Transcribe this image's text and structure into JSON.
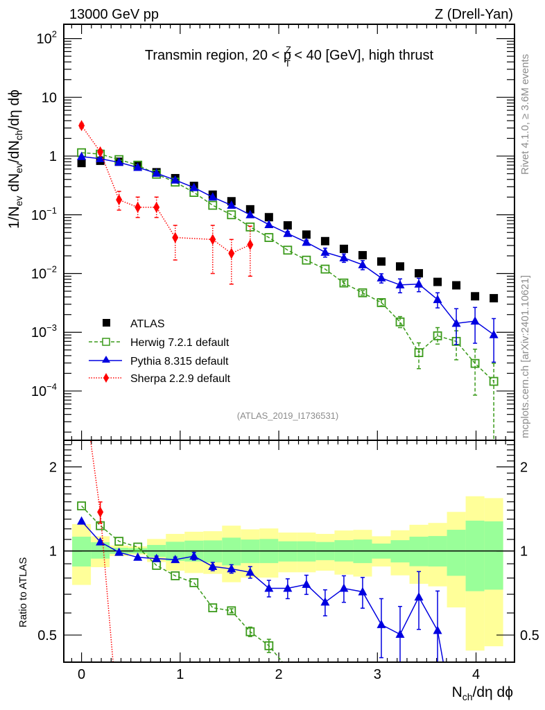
{
  "header": {
    "left": "13000 GeV pp",
    "right": "Z (Drell-Yan)"
  },
  "side_text": {
    "rivet": "Rivet 4.1.0, ≥ 3.6M events",
    "mcplots": "mcplots.cern.ch [arXiv:2401.10621]"
  },
  "analysis_id": "(ATLAS_2019_I1736531)",
  "colors": {
    "atlas": "#000000",
    "herwig": "#3a9a1a",
    "pythia": "#0000e0",
    "sherpa": "#ff0000",
    "band_inner": "#99ff99",
    "band_outer": "#ffff99"
  },
  "chart_data": [
    {
      "type": "scatter",
      "panel": "main",
      "title": "Transmin region, 20 < p_T^Z < 40 [GeV], high thrust",
      "title_parts": {
        "pre": "Transmin region, 20 < p",
        "sup": "Z",
        "sub": "T",
        "post": " < 40 [GeV], high thrust"
      },
      "ylabel": "1/N_ev dN_ev/dN_ch/dη dϕ",
      "ylabel_parts": [
        "1/N",
        "ev",
        " dN",
        "ev",
        "/dN",
        "ch",
        "/dη dϕ"
      ],
      "yscale": "log",
      "ylim": [
        1.45e-05,
        175
      ],
      "xlim": [
        -0.18,
        4.39
      ],
      "yticks": [
        {
          "v": 100,
          "base": "10",
          "exp": "2"
        },
        {
          "v": 10,
          "base": "10",
          "exp": ""
        },
        {
          "v": 1,
          "base": "1",
          "exp": ""
        },
        {
          "v": 0.1,
          "base": "10",
          "exp": "−1"
        },
        {
          "v": 0.01,
          "base": "10",
          "exp": "−2"
        },
        {
          "v": 0.001,
          "base": "10",
          "exp": "−3"
        },
        {
          "v": 0.0001,
          "base": "10",
          "exp": "−4"
        }
      ],
      "x": [
        0,
        0.19,
        0.38,
        0.57,
        0.76,
        0.95,
        1.14,
        1.33,
        1.52,
        1.71,
        1.9,
        2.09,
        2.28,
        2.47,
        2.66,
        2.85,
        3.04,
        3.23,
        3.42,
        3.61,
        3.8,
        3.99,
        4.18
      ],
      "legend": {
        "placement": "lower-left",
        "entries": [
          "ATLAS",
          "Herwig 7.2.1 default",
          "Pythia 8.315 default",
          "Sherpa 2.2.9 default"
        ]
      },
      "series": [
        {
          "name": "ATLAS",
          "key": "atlas",
          "marker": "square-filled",
          "values": [
            0.76,
            0.83,
            0.8,
            0.7,
            0.53,
            0.42,
            0.31,
            0.22,
            0.17,
            0.124,
            0.091,
            0.066,
            0.046,
            0.0356,
            0.0263,
            0.0205,
            0.016,
            0.0132,
            0.0101,
            0.0072,
            0.0063,
            0.0041,
            0.0038
          ]
        },
        {
          "name": "Herwig 7.2.1 default",
          "key": "herwig",
          "marker": "square-open",
          "line": "dashed",
          "values": [
            1.14,
            1.08,
            0.87,
            0.7,
            0.49,
            0.36,
            0.24,
            0.145,
            0.1,
            0.062,
            0.041,
            0.025,
            0.0169,
            0.0119,
            0.0069,
            0.0047,
            0.0032,
            0.0015,
            0.00045,
            0.00087,
            0.0007,
            0.000295,
            0.000146
          ],
          "err_up": [
            0,
            0,
            0,
            0,
            0,
            0,
            0,
            0,
            0,
            0,
            0,
            0,
            0,
            0,
            0.0006,
            0.0004,
            0.0004,
            0.00035,
            0.00021,
            0.00033,
            0.00036,
            0.00022,
            0.00015
          ],
          "err_down": [
            0,
            0,
            0,
            0,
            0,
            0,
            0,
            0,
            0,
            0,
            0,
            0,
            0,
            0,
            0.0006,
            0.0004,
            0.0004,
            0.0003,
            0.00021,
            0.00024,
            0.00036,
            0.00021,
            0.000146
          ]
        },
        {
          "name": "Pythia 8.315 default",
          "key": "pythia",
          "marker": "triangle-filled",
          "line": "solid",
          "values": [
            0.98,
            0.9,
            0.78,
            0.64,
            0.51,
            0.39,
            0.29,
            0.2,
            0.145,
            0.1,
            0.068,
            0.048,
            0.034,
            0.023,
            0.0185,
            0.0141,
            0.0084,
            0.0064,
            0.0066,
            0.0036,
            0.00142,
            0.00155,
            0.00091
          ],
          "err_up": [
            0,
            0,
            0,
            0,
            0,
            0,
            0,
            0,
            0,
            0,
            0,
            0.004,
            0.003,
            0.004,
            0.003,
            0.0025,
            0.0015,
            0.0017,
            0.0017,
            0.0011,
            0.0011,
            0.0011,
            0.0008
          ],
          "err_down": [
            0,
            0,
            0,
            0,
            0,
            0,
            0,
            0,
            0,
            0,
            0,
            0.004,
            0.003,
            0.004,
            0.003,
            0.0025,
            0.0015,
            0.0017,
            0.0017,
            0.001,
            0.0008,
            0.0009,
            0.0006
          ]
        },
        {
          "name": "Sherpa 2.2.9 default",
          "key": "sherpa",
          "marker": "diamond-filled",
          "line": "dotted",
          "x": [
            0,
            0.19,
            0.38,
            0.57,
            0.76,
            0.95,
            1.33,
            1.52,
            1.71
          ],
          "values": [
            3.3,
            1.18,
            0.18,
            0.134,
            0.134,
            0.041,
            0.038,
            0.022,
            0.031
          ],
          "err_up": [
            0.3,
            0.1,
            0.07,
            0.066,
            0.066,
            0.025,
            0.028,
            0.016,
            0.033
          ],
          "err_down": [
            0.3,
            0.1,
            0.06,
            0.044,
            0.044,
            0.024,
            0.028,
            0.0154,
            0.022
          ]
        }
      ]
    },
    {
      "type": "scatter",
      "panel": "ratio",
      "ylabel": "Ratio to ATLAS",
      "xlabel": "N_ch/dη dϕ",
      "xlabel_parts": [
        "N",
        "ch",
        "/dη dϕ"
      ],
      "yscale": "log",
      "ylim": [
        0.4,
        2.49
      ],
      "xlim": [
        -0.18,
        4.39
      ],
      "yticks": [
        {
          "v": 2,
          "label": "2"
        },
        {
          "v": 1,
          "label": "1"
        },
        {
          "v": 0.5,
          "label": "0.5"
        }
      ],
      "xticks": [
        {
          "v": 0,
          "label": "0"
        },
        {
          "v": 1,
          "label": "1"
        },
        {
          "v": 2,
          "label": "2"
        },
        {
          "v": 3,
          "label": "3"
        },
        {
          "v": 4,
          "label": "4"
        }
      ],
      "reference_line": 1,
      "bin_width": 0.19,
      "band_outer": {
        "upper": [
          1.248,
          1.129,
          1.046,
          1.039,
          1.104,
          1.151,
          1.172,
          1.177,
          1.232,
          1.195,
          1.204,
          1.164,
          1.164,
          1.151,
          1.184,
          1.19,
          1.129,
          1.186,
          1.241,
          1.26,
          1.38,
          1.57,
          1.546
        ],
        "lower": [
          0.756,
          0.875,
          0.959,
          0.97,
          0.913,
          0.85,
          0.834,
          0.828,
          0.773,
          0.803,
          0.803,
          0.839,
          0.839,
          0.85,
          0.823,
          0.81,
          0.88,
          0.818,
          0.763,
          0.747,
          0.628,
          0.44,
          0.456
        ]
      },
      "band_inner": {
        "upper": [
          1.125,
          1.075,
          1.027,
          1.023,
          1.051,
          1.079,
          1.089,
          1.091,
          1.116,
          1.099,
          1.104,
          1.083,
          1.083,
          1.077,
          1.093,
          1.099,
          1.063,
          1.093,
          1.125,
          1.131,
          1.191,
          1.284,
          1.277
        ],
        "lower": [
          0.88,
          0.939,
          0.976,
          0.98,
          0.952,
          0.922,
          0.917,
          0.91,
          0.888,
          0.905,
          0.905,
          0.917,
          0.917,
          0.927,
          0.917,
          0.905,
          0.939,
          0.91,
          0.882,
          0.88,
          0.815,
          0.718,
          0.727
        ]
      },
      "series": [
        {
          "name": "Herwig 7.2.1 default",
          "key": "herwig",
          "values": [
            1.45,
            1.232,
            1.083,
            1.033,
            0.888,
            0.815,
            0.77,
            0.626,
            0.611,
            0.514,
            0.458,
            0.38,
            0.37
          ],
          "err": [
            0,
            0,
            0,
            0,
            0,
            0,
            0,
            0,
            0.01,
            0.02,
            0.025,
            0,
            0
          ]
        },
        {
          "name": "Pythia 8.315 default",
          "key": "pythia",
          "values": [
            1.279,
            1.077,
            0.989,
            0.949,
            0.939,
            0.931,
            0.958,
            0.88,
            0.863,
            0.839,
            0.735,
            0.735,
            0.759,
            0.656,
            0.735,
            0.714,
            0.545,
            0.503,
            0.684,
            0.519,
            0.22,
            0.25,
            0.24
          ],
          "err": [
            0,
            0,
            0,
            0,
            0.02,
            0.02,
            0.03,
            0.03,
            0.03,
            0.04,
            0.05,
            0.06,
            0.06,
            0.07,
            0.08,
            0.09,
            0.13,
            0.13,
            0.16,
            0.2,
            0,
            0,
            0
          ]
        },
        {
          "name": "Sherpa 2.2.9 default",
          "key": "sherpa",
          "x": [
            0,
            0.19,
            0.38
          ],
          "values": [
            4.3,
            1.378,
            0.225
          ],
          "err": [
            0,
            0.12,
            0
          ]
        }
      ]
    }
  ]
}
